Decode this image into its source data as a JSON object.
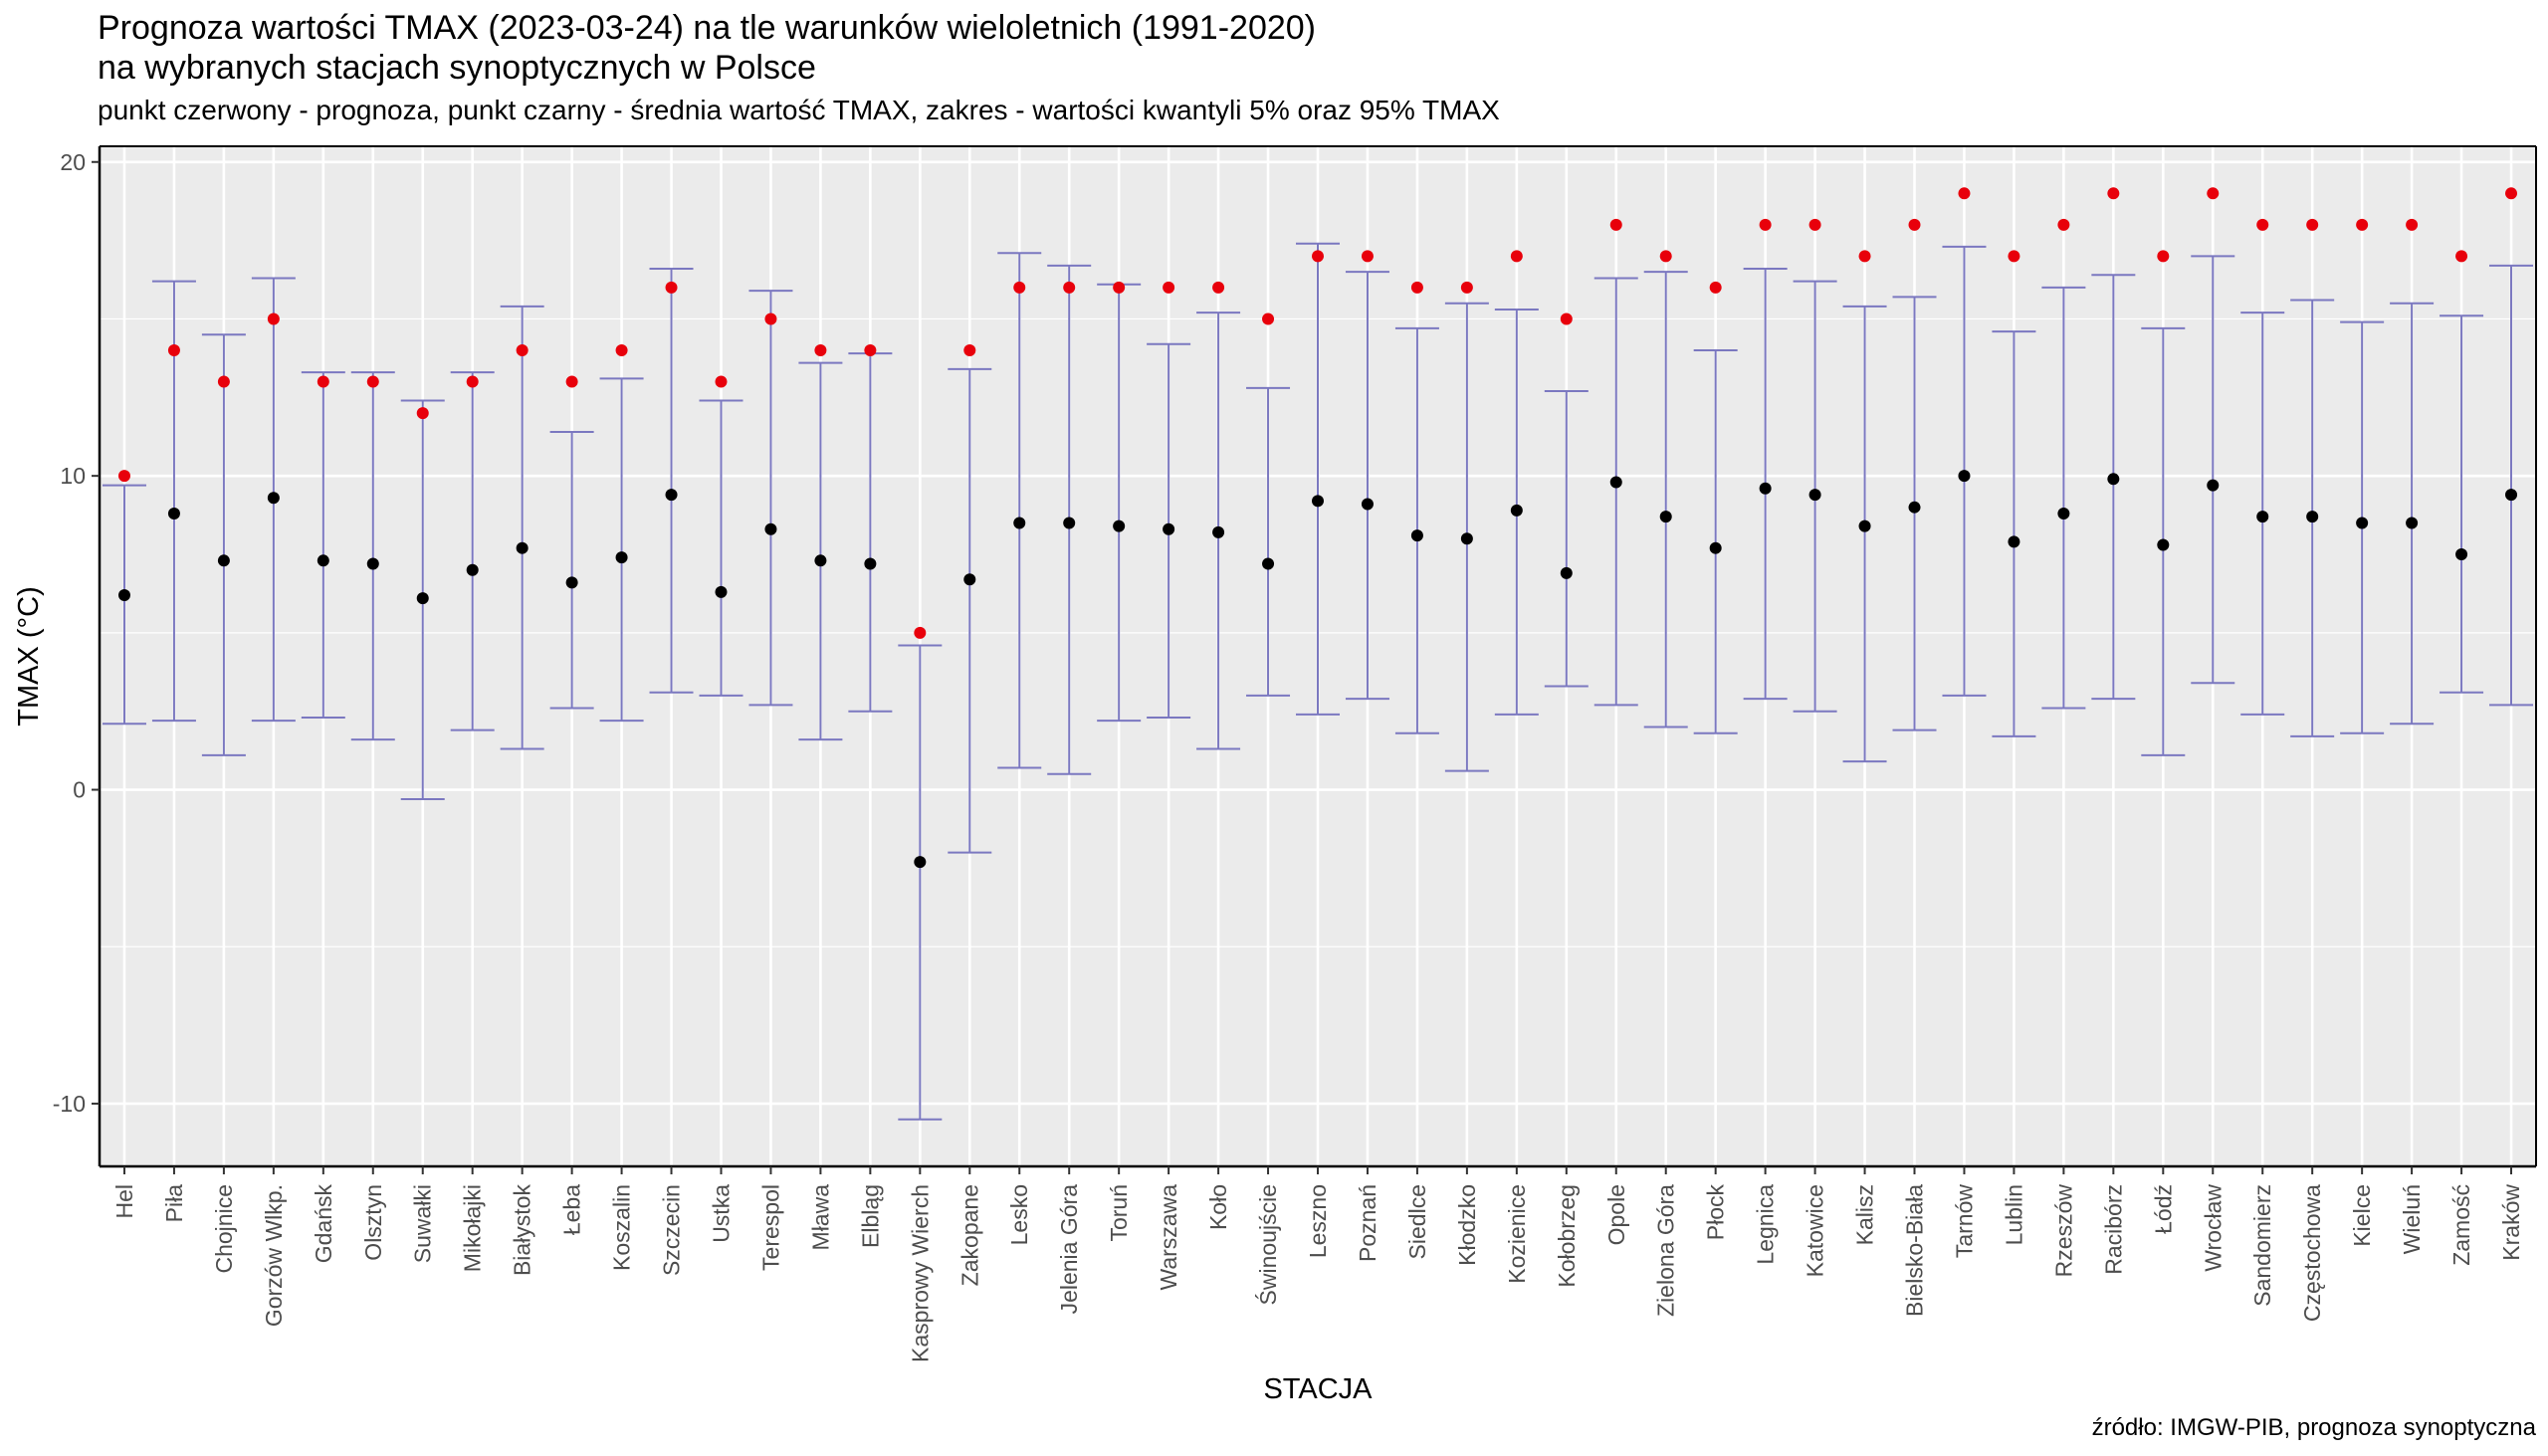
{
  "title_line1": "Prognoza wartości TMAX (2023-03-24) na tle warunków wieloletnich (1991-2020)",
  "title_line2": "na wybranych stacjach synoptycznych w Polsce",
  "subtitle": "punkt czerwony - prognoza, punkt czarny - średnia wartość TMAX, zakres - wartości kwantyli 5% oraz 95% TMAX",
  "caption": "źródło: IMGW-PIB, prognoza synoptyczna",
  "colors": {
    "panel_background": "#ebebeb",
    "grid": "#ffffff",
    "error_bar": "#7b78c0",
    "mean_point": "#000000",
    "forecast_point": "#e8000b"
  },
  "chart_data": {
    "type": "scatter",
    "xlabel": "STACJA",
    "ylabel": "TMAX (°C)",
    "ylim": [
      -12,
      20.5
    ],
    "yticks": [
      -10,
      0,
      10,
      20
    ],
    "grid": true,
    "categories": [
      "Hel",
      "Piła",
      "Chojnice",
      "Gorzów Wlkp.",
      "Gdańsk",
      "Olsztyn",
      "Suwałki",
      "Mikołajki",
      "Białystok",
      "Łeba",
      "Koszalin",
      "Szczecin",
      "Ustka",
      "Terespol",
      "Mława",
      "Elbląg",
      "Kasprowy Wierch",
      "Zakopane",
      "Lesko",
      "Jelenia Góra",
      "Toruń",
      "Warszawa",
      "Koło",
      "Świnoujście",
      "Leszno",
      "Poznań",
      "Siedlce",
      "Kłodzko",
      "Kozienice",
      "Kołobrzeg",
      "Opole",
      "Zielona Góra",
      "Płock",
      "Legnica",
      "Katowice",
      "Kalisz",
      "Bielsko-Biała",
      "Tarnów",
      "Lublin",
      "Rzeszów",
      "Racibórz",
      "Łódź",
      "Wrocław",
      "Sandomierz",
      "Częstochowa",
      "Kielce",
      "Wieluń",
      "Zamość",
      "Kraków"
    ],
    "series": [
      {
        "key": "q05",
        "values": [
          2.1,
          2.2,
          1.1,
          2.2,
          2.3,
          1.6,
          -0.3,
          1.9,
          1.3,
          2.6,
          2.2,
          3.1,
          3.0,
          2.7,
          1.6,
          2.5,
          -10.5,
          -2.0,
          0.7,
          0.5,
          2.2,
          2.3,
          1.3,
          3.0,
          2.4,
          2.9,
          1.8,
          0.6,
          2.4,
          3.3,
          2.7,
          2.0,
          1.8,
          2.9,
          2.5,
          0.9,
          1.9,
          3.0,
          1.7,
          2.6,
          2.9,
          1.1,
          3.4,
          2.4,
          1.7,
          1.8,
          2.1,
          3.1,
          2.7
        ]
      },
      {
        "key": "q95",
        "values": [
          9.7,
          16.2,
          14.5,
          16.3,
          13.3,
          13.3,
          12.4,
          13.3,
          15.4,
          11.4,
          13.1,
          16.6,
          12.4,
          15.9,
          13.6,
          13.9,
          4.6,
          13.4,
          17.1,
          16.7,
          16.1,
          14.2,
          15.2,
          12.8,
          17.4,
          16.5,
          14.7,
          15.5,
          15.3,
          12.7,
          16.3,
          16.5,
          14.0,
          16.6,
          16.2,
          15.4,
          15.7,
          17.3,
          14.6,
          16.0,
          16.4,
          14.7,
          17.0,
          15.2,
          15.6,
          14.9,
          15.5,
          15.1,
          16.7
        ]
      },
      {
        "key": "mean",
        "values": [
          6.2,
          8.8,
          7.3,
          9.3,
          7.3,
          7.2,
          6.1,
          7.0,
          7.7,
          6.6,
          7.4,
          9.4,
          6.3,
          8.3,
          7.3,
          7.2,
          -2.3,
          6.7,
          8.5,
          8.5,
          8.4,
          8.3,
          8.2,
          7.2,
          9.2,
          9.1,
          8.1,
          8.0,
          8.9,
          6.9,
          9.8,
          8.7,
          7.7,
          9.6,
          9.4,
          8.4,
          9.0,
          10.0,
          7.9,
          8.8,
          9.9,
          7.8,
          9.7,
          8.7,
          8.7,
          8.5,
          8.5,
          7.5,
          9.4
        ]
      },
      {
        "key": "forecast",
        "values": [
          10,
          14,
          13,
          15,
          13,
          13,
          12,
          13,
          14,
          13,
          14,
          16,
          13,
          15,
          14,
          14,
          5,
          14,
          16,
          16,
          16,
          16,
          16,
          15,
          17,
          17,
          16,
          16,
          17,
          15,
          18,
          17,
          16,
          18,
          18,
          17,
          18,
          19,
          17,
          18,
          19,
          17,
          19,
          18,
          18,
          18,
          18,
          17,
          19
        ]
      }
    ]
  }
}
